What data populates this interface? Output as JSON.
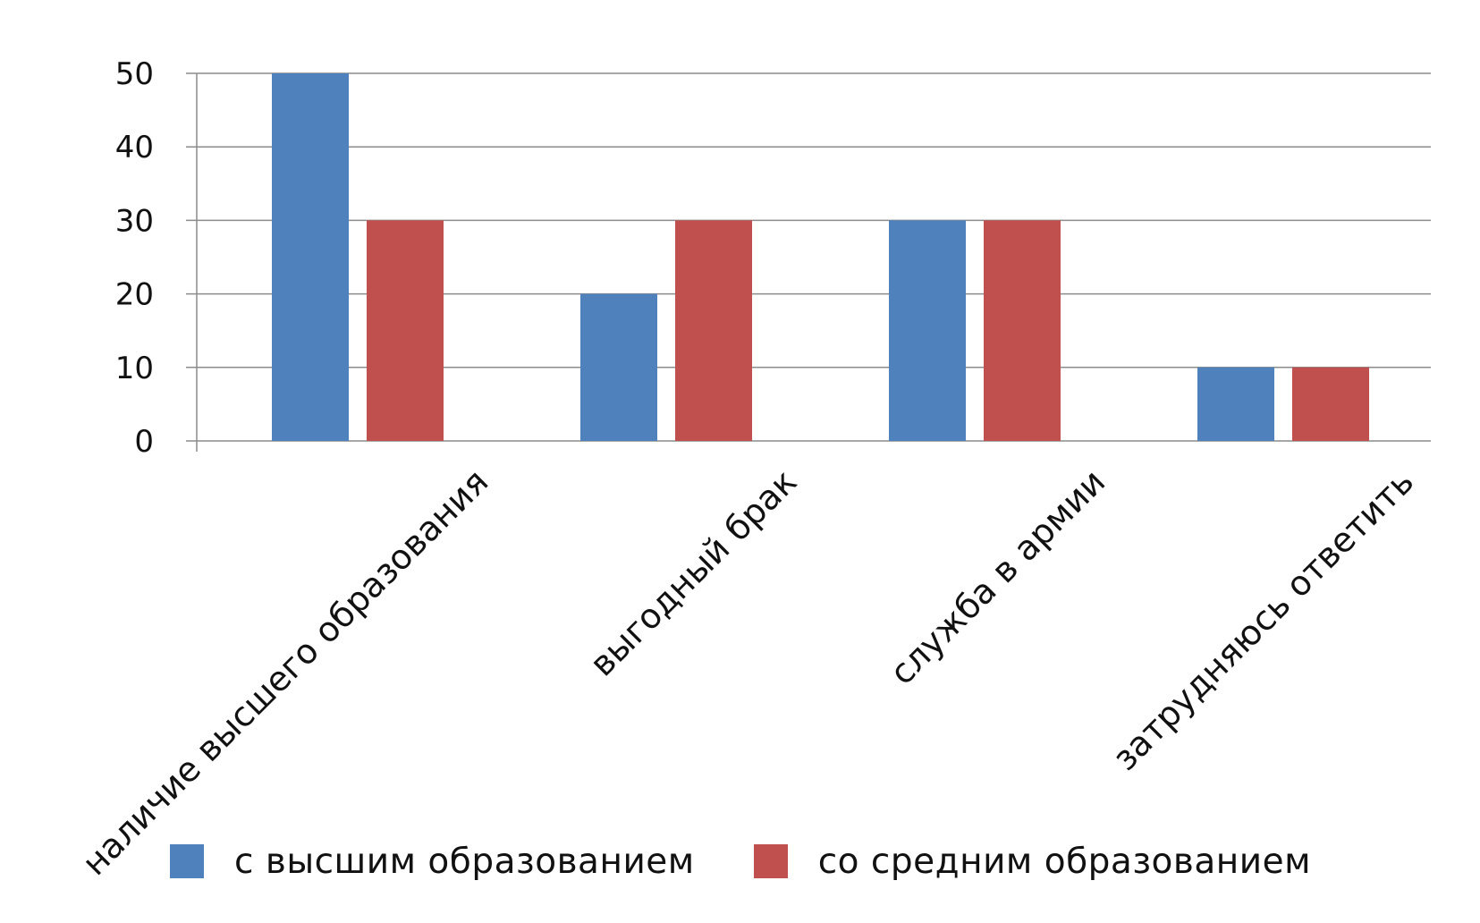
{
  "chart_data": {
    "type": "bar",
    "title": "",
    "xlabel": "",
    "ylabel": "",
    "categories": [
      "наличие высшего образования",
      "выгодный брак",
      "служба в армии",
      "затрудняюсь ответить"
    ],
    "series": [
      {
        "name": "с высшим образованием",
        "color": "#4f81bd",
        "values": [
          50,
          20,
          30,
          10
        ]
      },
      {
        "name": "со средним образованием",
        "color": "#c0504d",
        "values": [
          30,
          30,
          30,
          10
        ]
      }
    ],
    "ylim": [
      0,
      50
    ],
    "yticks": [
      0,
      10,
      20,
      30,
      40,
      50
    ],
    "grid": true,
    "legend_position": "bottom"
  }
}
